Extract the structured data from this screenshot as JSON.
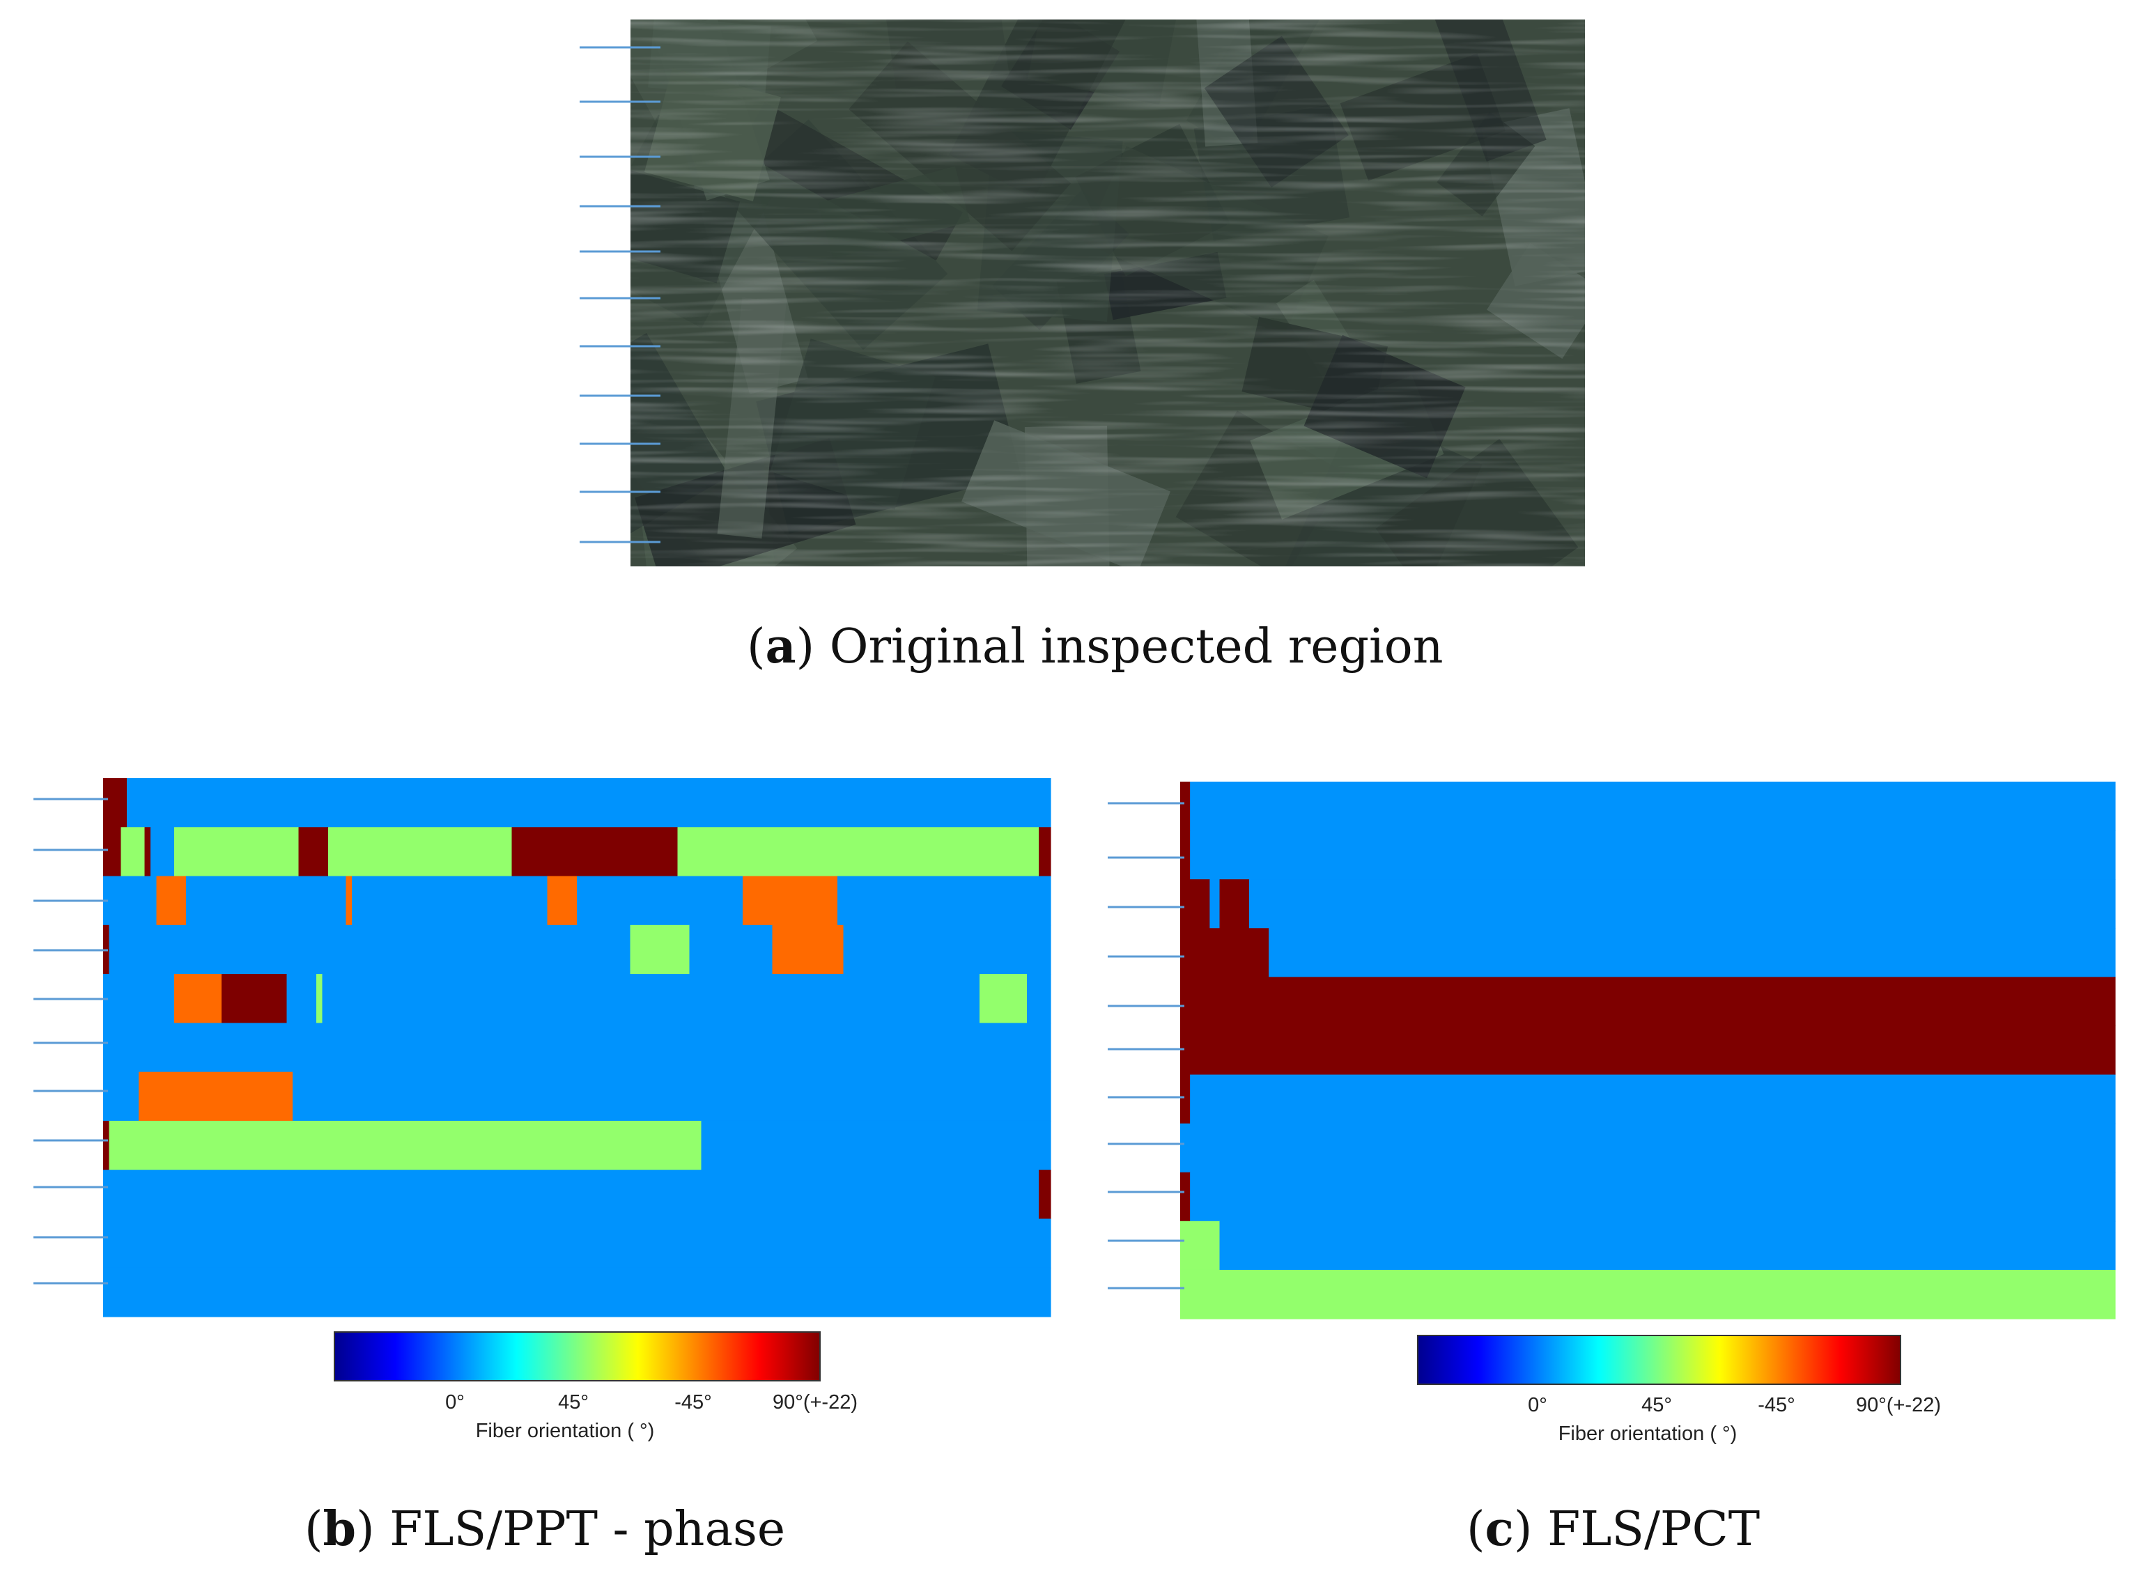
{
  "panels": {
    "a": {
      "letter": "a",
      "caption": "Original inspected region"
    },
    "b": {
      "letter": "b",
      "caption": "FLS/PPT - phase"
    },
    "c": {
      "letter": "c",
      "caption": "FLS/PCT"
    }
  },
  "colorbar": {
    "ticks": [
      "0°",
      "45°",
      "-45°",
      "90°(+-22)"
    ],
    "label": "Fiber orientation ( °)"
  },
  "colors": {
    "blue": "#0093fd",
    "green": "#93ff6c",
    "orange": "#ff6a00",
    "darkred": "#7e0000",
    "photo_base": "#3c4a3f",
    "guide_line": "#5b9bd5"
  },
  "chart_data": [
    {
      "type": "heatmap",
      "title": "FLS/PPT - phase",
      "legend": {
        "0": "0°",
        "1": "45°",
        "2": "-45°",
        "3": "90°(+-22)"
      },
      "rows": [
        "3333000000000000000000000000000000000000000000000000000000000000000000000000000000000000000000000000000000000000000000000000000000000000000000000000000000000000",
        "3331111300001111111111111111111113333311111111111111111111111111111113333333333333333333333333333111111111111111111111111111111111111111111111111111111111111133",
        "0000000002222200000000000000000000000000020000000000000000000000000000000002222200000000000000000000000000002222222222222222000000000000000000000000000000000000",
        "3000000000000000000000000000000000000000000000000000000000000000000000000000000000000000011111111110000000000000022222222222200000000000000000000000000000000000",
        "0000000000002222222233333333333000001000000000000000000000000000000000000000000000000000000000000000000000000000000000000000000000000000000000000000111111110000",
        "0000000000000000000000000000000000000000000000000000000000000000000000000000000000000000000000000000000000000000000000000000000000000000000000000000000000000000",
        "0000002222222222222222222222222200000000000000000000000000000000000000000000000000000000000000000000000000000000000000000000000000000000000000000000000000000000",
        "3111111111111111111111111111111111111111111111111111111111111111111111111111111111111111111111111111100000000000000000000000000000000000000000000000000000000000",
        "0000000000000000000000000000000000000000000000000000000000000000000000000000000000000000000000000000000000000000000000000000000000000000000000000000000000000033",
        "0000000000000000000000000000000000000000000000000000000000000000000000000000000000000000000000000000000000000000000000000000000000000000000000000000000000000000",
        "0000000000000000000000000000000000000000000000000000000000000000000000000000000000000000000000000000000000000000000000000000000000000000000000000000000000000000"
      ]
    },
    {
      "type": "heatmap",
      "title": "FLS/PCT",
      "legend": {
        "0": "0°",
        "1": "45°",
        "2": "-45°",
        "3": "90°(+-22)"
      },
      "rows": [
        "30000000000000000000000000000000000000000000000000000000000000000000000000000000000000000000000",
        "30000000000000000000000000000000000000000000000000000000000000000000000000000000000000000000000",
        "33303330000000000000000000000000000000000000000000000000000000000000000000000000000000000000000",
        "33333333300000000000000000000000000000000000000000000000000000000000000000000000000000000000000",
        "33333333333333333333333333333333333333333333333333333333333333333333333333333333333333333333333",
        "33333333333333333333333333333333333333333333333333333333333333333333333333333333333333333333333",
        "30000000000000000000000000000000000000000000000000000000000000000000000000000000000000000000000",
        "00000000000000000000000000000000000000000000000000000000000000000000000000000000000000000000000",
        "30000000000000000000000000000000000000000000000000000000000000000000000000000000000000000000000",
        "11110000000000000000000000000000000000000000000000000000000000000000000000000000000000000000000",
        "11111111111111111111111111111111111111111111111111111111111111111111111111111111111111111111111"
      ]
    }
  ]
}
